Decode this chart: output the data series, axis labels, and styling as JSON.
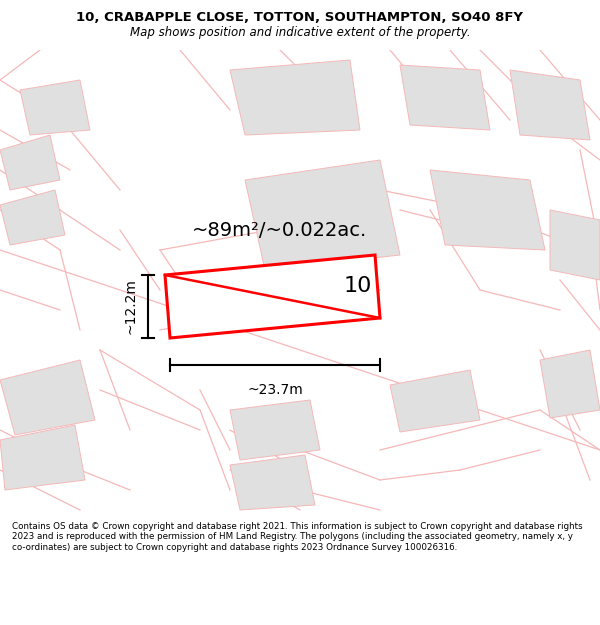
{
  "title_line1": "10, CRABAPPLE CLOSE, TOTTON, SOUTHAMPTON, SO40 8FY",
  "title_line2": "Map shows position and indicative extent of the property.",
  "area_text": "~89m²/~0.022ac.",
  "width_label": "~23.7m",
  "height_label": "~12.2m",
  "property_number": "10",
  "footer_text": "Contains OS data © Crown copyright and database right 2021. This information is subject to Crown copyright and database rights 2023 and is reproduced with the permission of HM Land Registry. The polygons (including the associated geometry, namely x, y co-ordinates) are subject to Crown copyright and database rights 2023 Ordnance Survey 100026316.",
  "bg_color": "#ffffff",
  "map_bg": "#ffffff",
  "plot_color_edge": "#ff0000",
  "road_color": "#f5b8b8",
  "building_color": "#e0e0e0",
  "building_edge": "#cccccc"
}
